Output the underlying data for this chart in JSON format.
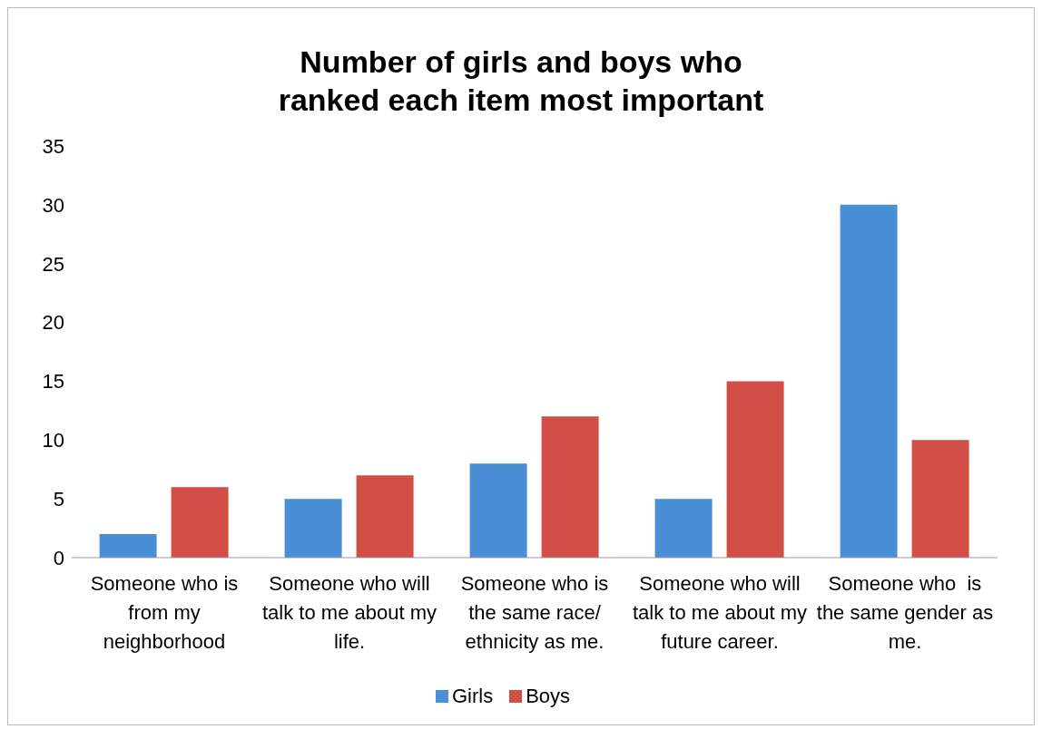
{
  "chart_data": {
    "type": "bar",
    "title": "Number of girls and boys who\nranked each item most important",
    "categories": [
      "Someone who is from my neighborhood",
      "Someone who will talk to me about my life.",
      "Someone who is the same race/ ethnicity as me.",
      "Someone who will talk to me about my future career.",
      "Someone who  is the same gender as me."
    ],
    "series": [
      {
        "name": "Girls",
        "color": "#4a8fd6",
        "values": [
          2,
          5,
          8,
          5,
          30
        ]
      },
      {
        "name": "Boys",
        "color": "#d24f47",
        "values": [
          6,
          7,
          12,
          15,
          10
        ]
      }
    ],
    "ylim": [
      0,
      35
    ],
    "yticks": [
      0,
      5,
      10,
      15,
      20,
      25,
      30,
      35
    ],
    "grid": false,
    "legend": "bottom"
  }
}
